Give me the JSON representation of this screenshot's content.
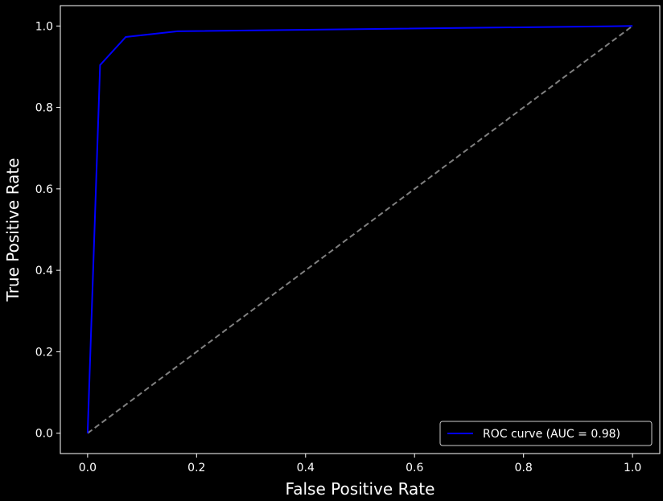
{
  "chart_data": {
    "type": "line",
    "title": "",
    "xlabel": "False Positive Rate",
    "ylabel": "True Positive Rate",
    "xlim": [
      -0.05,
      1.05
    ],
    "ylim": [
      -0.05,
      1.05
    ],
    "x_ticks": [
      "0.0",
      "0.2",
      "0.4",
      "0.6",
      "0.8",
      "1.0"
    ],
    "y_ticks": [
      "0.0",
      "0.2",
      "0.4",
      "0.6",
      "0.8",
      "1.0"
    ],
    "grid": false,
    "legend_position": "lower-right",
    "background": "#000000",
    "series": [
      {
        "name": "ROC curve (AUC = 0.98)",
        "color": "#0000ff",
        "style": "solid",
        "x": [
          0.0,
          0.023,
          0.07,
          0.165,
          1.0
        ],
        "y": [
          0.0,
          0.904,
          0.973,
          0.987,
          1.0
        ]
      },
      {
        "color": "#808080",
        "style": "dashed",
        "x": [
          0.0,
          1.0
        ],
        "y": [
          0.0,
          1.0
        ]
      }
    ]
  }
}
